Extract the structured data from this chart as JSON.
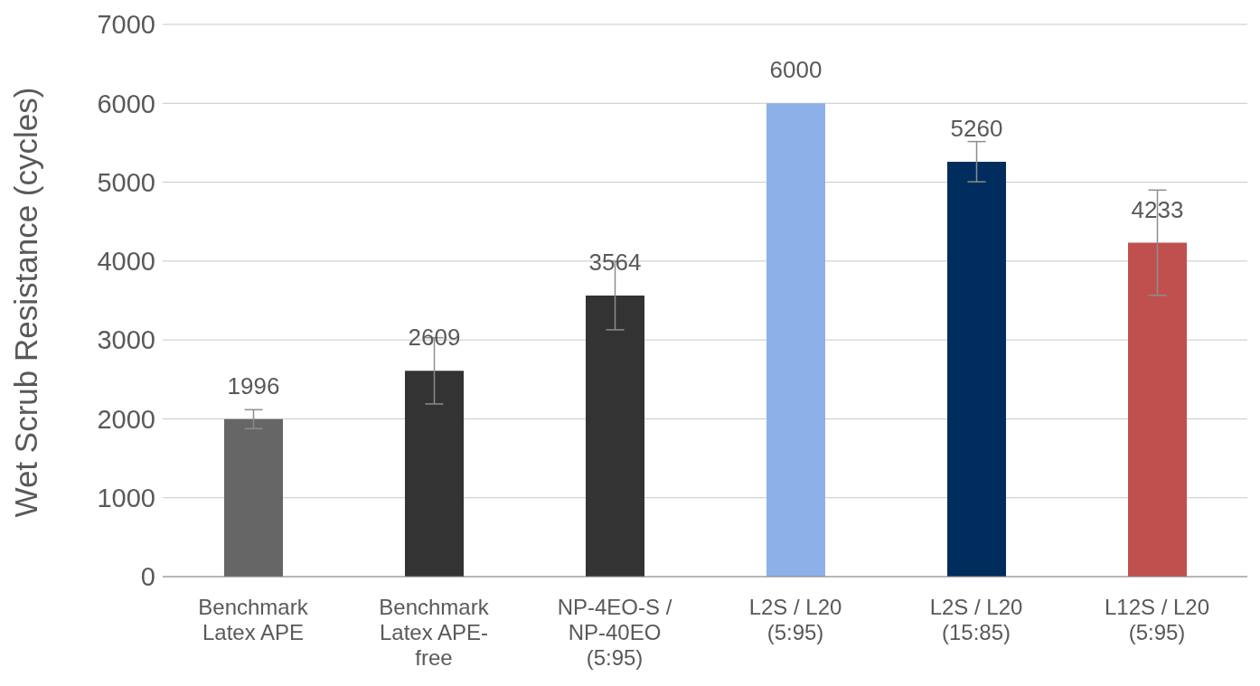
{
  "chart_data": {
    "type": "bar",
    "ylabel": "Wet Scrub Resistance (cycles)",
    "categories": [
      "Benchmark Latex APE",
      "Benchmark Latex APE-free",
      "NP-4EO-S / NP-40EO (5:95)",
      "L2S / L20 (5:95)",
      "L2S / L20 (15:85)",
      "L12S / L20 (5:95)"
    ],
    "values": [
      1996,
      2609,
      3564,
      6000,
      5260,
      4233
    ],
    "colors": [
      "#666666",
      "#333333",
      "#333333",
      "#8db0e8",
      "#002d5e",
      "#c0504d"
    ],
    "errors": [
      120,
      420,
      435,
      0,
      255,
      667
    ],
    "ylim": [
      0,
      7000
    ],
    "yticks": [
      0,
      1000,
      2000,
      3000,
      4000,
      5000,
      6000,
      7000
    ],
    "grid": "y",
    "data_labels": true,
    "legend": false
  }
}
